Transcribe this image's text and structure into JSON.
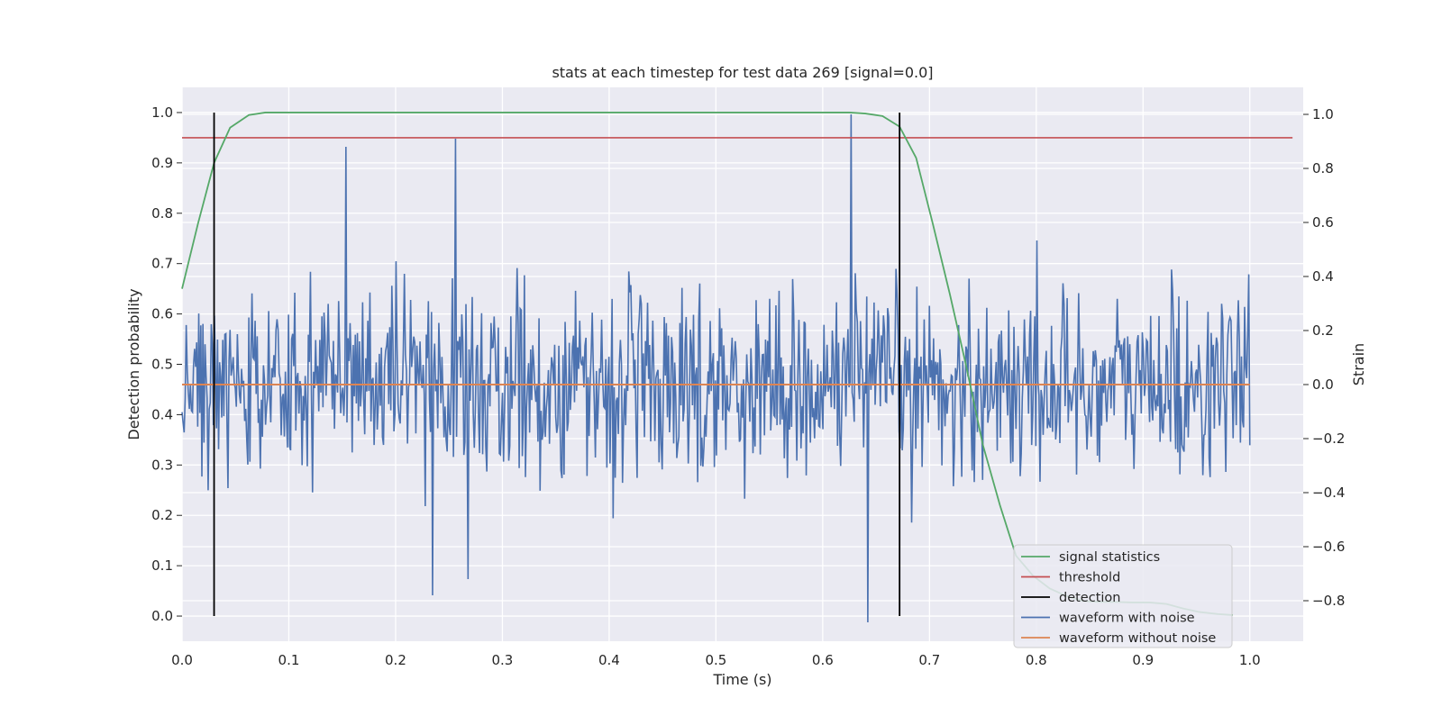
{
  "chart_data": {
    "type": "line",
    "title": "stats at each timestep for test data 269 [signal=0.0]",
    "xlabel": "Time (s)",
    "ylabel_left": "Detection probability",
    "ylabel_right": "Strain",
    "xlim": [
      0.0,
      1.05
    ],
    "ylim_left": [
      -0.05,
      1.05
    ],
    "ylim_right": [
      -0.95,
      1.1
    ],
    "x_ticks": [
      0.0,
      0.1,
      0.2,
      0.3,
      0.4,
      0.5,
      0.6,
      0.7,
      0.8,
      0.9,
      1.0
    ],
    "y_ticks_left": [
      0.0,
      0.1,
      0.2,
      0.3,
      0.4,
      0.5,
      0.6,
      0.7,
      0.8,
      0.9,
      1.0
    ],
    "y_ticks_right": [
      -0.8,
      -0.6,
      -0.4,
      -0.2,
      0.0,
      0.2,
      0.4,
      0.6,
      0.8,
      1.0
    ],
    "grid": true,
    "legend_position": "bottom-right",
    "legend": [
      {
        "label": "signal statistics",
        "color": "#55a868"
      },
      {
        "label": "threshold",
        "color": "#c44e52"
      },
      {
        "label": "detection",
        "color": "#000000"
      },
      {
        "label": "waveform with noise",
        "color": "#4c72b0"
      },
      {
        "label": "waveform without noise",
        "color": "#dd8452"
      }
    ],
    "series": [
      {
        "name": "signal statistics",
        "axis": "left",
        "color": "#55a868",
        "x": [
          0.0,
          0.015,
          0.03,
          0.045,
          0.0625,
          0.078,
          0.1,
          0.2,
          0.3,
          0.4,
          0.5,
          0.6,
          0.625,
          0.64,
          0.656,
          0.672,
          0.6875,
          0.703,
          0.719,
          0.734,
          0.75,
          0.766,
          0.781,
          0.797,
          0.8125,
          0.828,
          0.844,
          0.859,
          0.875,
          0.89,
          0.906,
          0.922,
          0.9375,
          0.953,
          0.97,
          0.984
        ],
        "y": [
          0.65,
          0.78,
          0.9,
          0.97,
          0.995,
          1.0,
          1.0,
          1.0,
          1.0,
          1.0,
          1.0,
          1.0,
          1.0,
          0.998,
          0.993,
          0.972,
          0.91,
          0.78,
          0.64,
          0.5,
          0.34,
          0.22,
          0.12,
          0.08,
          0.055,
          0.04,
          0.03,
          0.028,
          0.028,
          0.027,
          0.027,
          0.024,
          0.015,
          0.008,
          0.004,
          0.002
        ]
      },
      {
        "name": "threshold",
        "axis": "left",
        "color": "#c44e52",
        "x": [
          0.0,
          1.04
        ],
        "y": [
          0.95,
          0.95
        ]
      },
      {
        "name": "waveform without noise",
        "axis": "right",
        "color": "#dd8452",
        "x": [
          0.0,
          1.0
        ],
        "y": [
          0.0,
          0.0
        ]
      },
      {
        "name": "waveform with noise",
        "axis": "right",
        "color": "#4c72b0",
        "x_start": 0.0,
        "x_end": 1.0,
        "n_points": 1024,
        "amplitude_std": 0.17,
        "notable_points": [
          {
            "x": 0.153,
            "y": 0.88
          },
          {
            "x": 0.256,
            "y": 0.91
          },
          {
            "x": 0.627,
            "y": 1.0
          },
          {
            "x": 0.642,
            "y": -0.88
          },
          {
            "x": 0.235,
            "y": -0.78
          }
        ]
      }
    ],
    "detections": {
      "name": "detection",
      "color": "#000000",
      "x": [
        0.03,
        0.672
      ],
      "y_range": [
        0.0,
        1.0
      ]
    }
  }
}
